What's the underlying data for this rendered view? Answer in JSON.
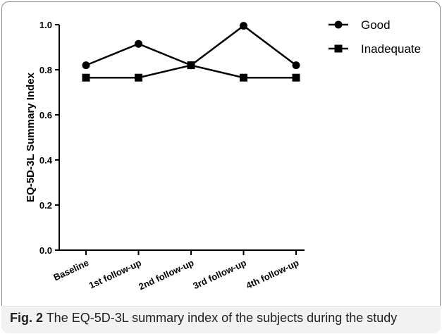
{
  "chart_data": {
    "type": "line",
    "categories": [
      "Baseline",
      "1st follow-up",
      "2nd follow-up",
      "3rd follow-up",
      "4th follow-up"
    ],
    "series": [
      {
        "name": "Good",
        "marker": "circle",
        "values": [
          0.82,
          0.915,
          0.82,
          0.995,
          0.82
        ]
      },
      {
        "name": "Inadequate",
        "marker": "square",
        "values": [
          0.765,
          0.765,
          0.82,
          0.765,
          0.765
        ]
      }
    ],
    "ylabel": "EQ-5D-3L Summary Index",
    "xlabel": "",
    "ylim": [
      0.0,
      1.0
    ],
    "yticks": [
      "0.0",
      "0.2",
      "0.4",
      "0.6",
      "0.8",
      "1.0"
    ],
    "legend_position": "top-right",
    "grid": false,
    "line_color": "#000000"
  },
  "caption": {
    "fig_label": "Fig. 2",
    "text": " The EQ-5D-3L summary index of the subjects during the study"
  }
}
